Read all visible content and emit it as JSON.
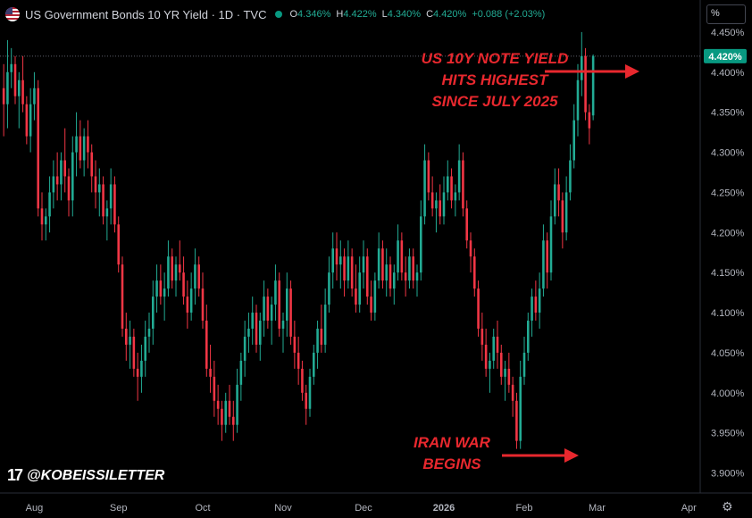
{
  "header": {
    "title": "US Government Bonds 10 YR Yield · 1D · TVC",
    "ohlc": [
      {
        "k": "O",
        "v": "4.346%"
      },
      {
        "k": "H",
        "v": "4.422%"
      },
      {
        "k": "L",
        "v": "4.340%"
      },
      {
        "k": "C",
        "v": "4.420%"
      },
      {
        "k": "",
        "v": "+0.088 (+2.03%)"
      }
    ]
  },
  "unit_label": "%",
  "watermark": "@KOBEISSILETTER",
  "annotations": {
    "top": [
      "US 10Y NOTE YIELD",
      "HITS HIGHEST",
      "SINCE JULY 2025"
    ],
    "bottom": [
      "IRAN WAR",
      "BEGINS"
    ]
  },
  "colors": {
    "up": "#22ab94",
    "down": "#f23645",
    "annotation": "#e8282e",
    "last_price": "#089981"
  },
  "icons": [
    "us-flag-icon",
    "market-status-dot-icon",
    "tradingview-logo-icon",
    "gear-icon"
  ],
  "chart_data": {
    "type": "candlestick",
    "y_axis": {
      "unit": "%",
      "ticks": [
        3.9,
        3.95,
        4.0,
        4.05,
        4.1,
        4.15,
        4.2,
        4.25,
        4.3,
        4.35,
        4.4,
        4.45
      ],
      "tick_labels": [
        "3.900%",
        "3.950%",
        "4.000%",
        "4.050%",
        "4.100%",
        "4.150%",
        "4.200%",
        "4.250%",
        "4.300%",
        "4.350%",
        "4.400%",
        "4.450%"
      ],
      "range": [
        3.875,
        4.49
      ],
      "side": "right",
      "grid": false
    },
    "x_axis": {
      "labels": [
        "Aug",
        "Sep",
        "Oct",
        "Nov",
        "Dec",
        "2026",
        "Feb",
        "Mar",
        "Apr"
      ],
      "label_bar_index": [
        8,
        30,
        52,
        73,
        94,
        115,
        136,
        155,
        179
      ],
      "range_bars": [
        0,
        182
      ]
    },
    "last_price": {
      "value": 4.42,
      "label": "4.420%"
    },
    "candles": [
      [
        4.38,
        4.41,
        4.32,
        4.36
      ],
      [
        4.36,
        4.44,
        4.33,
        4.4
      ],
      [
        4.4,
        4.43,
        4.38,
        4.41
      ],
      [
        4.41,
        4.42,
        4.36,
        4.37
      ],
      [
        4.37,
        4.4,
        4.33,
        4.39
      ],
      [
        4.39,
        4.42,
        4.35,
        4.36
      ],
      [
        4.36,
        4.37,
        4.31,
        4.32
      ],
      [
        4.32,
        4.38,
        4.3,
        4.36
      ],
      [
        4.36,
        4.4,
        4.34,
        4.38
      ],
      [
        4.38,
        4.39,
        4.22,
        4.23
      ],
      [
        4.23,
        4.25,
        4.19,
        4.21
      ],
      [
        4.21,
        4.23,
        4.19,
        4.22
      ],
      [
        4.22,
        4.27,
        4.2,
        4.25
      ],
      [
        4.25,
        4.29,
        4.23,
        4.27
      ],
      [
        4.27,
        4.3,
        4.24,
        4.26
      ],
      [
        4.26,
        4.3,
        4.24,
        4.29
      ],
      [
        4.29,
        4.33,
        4.25,
        4.27
      ],
      [
        4.27,
        4.28,
        4.22,
        4.24
      ],
      [
        4.24,
        4.32,
        4.22,
        4.3
      ],
      [
        4.3,
        4.35,
        4.27,
        4.32
      ],
      [
        4.32,
        4.34,
        4.28,
        4.29
      ],
      [
        4.29,
        4.33,
        4.27,
        4.32
      ],
      [
        4.32,
        4.34,
        4.28,
        4.3
      ],
      [
        4.3,
        4.31,
        4.25,
        4.27
      ],
      [
        4.27,
        4.29,
        4.23,
        4.25
      ],
      [
        4.25,
        4.28,
        4.22,
        4.26
      ],
      [
        4.26,
        4.27,
        4.21,
        4.22
      ],
      [
        4.22,
        4.24,
        4.19,
        4.23
      ],
      [
        4.23,
        4.28,
        4.21,
        4.26
      ],
      [
        4.26,
        4.27,
        4.2,
        4.21
      ],
      [
        4.21,
        4.22,
        4.15,
        4.16
      ],
      [
        4.16,
        4.17,
        4.07,
        4.08
      ],
      [
        4.08,
        4.1,
        4.04,
        4.06
      ],
      [
        4.06,
        4.09,
        4.03,
        4.07
      ],
      [
        4.07,
        4.08,
        4.02,
        4.03
      ],
      [
        4.03,
        4.05,
        3.99,
        4.02
      ],
      [
        4.02,
        4.06,
        4.0,
        4.04
      ],
      [
        4.04,
        4.09,
        4.02,
        4.07
      ],
      [
        4.07,
        4.1,
        4.05,
        4.08
      ],
      [
        4.08,
        4.14,
        4.06,
        4.12
      ],
      [
        4.12,
        4.16,
        4.1,
        4.14
      ],
      [
        4.14,
        4.16,
        4.11,
        4.12
      ],
      [
        4.12,
        4.15,
        4.09,
        4.13
      ],
      [
        4.13,
        4.19,
        4.12,
        4.17
      ],
      [
        4.17,
        4.18,
        4.13,
        4.14
      ],
      [
        4.14,
        4.17,
        4.12,
        4.16
      ],
      [
        4.16,
        4.19,
        4.14,
        4.15
      ],
      [
        4.15,
        4.17,
        4.11,
        4.12
      ],
      [
        4.12,
        4.14,
        4.08,
        4.1
      ],
      [
        4.1,
        4.15,
        4.09,
        4.13
      ],
      [
        4.13,
        4.18,
        4.11,
        4.16
      ],
      [
        4.16,
        4.17,
        4.12,
        4.13
      ],
      [
        4.13,
        4.15,
        4.08,
        4.09
      ],
      [
        4.09,
        4.11,
        4.02,
        4.03
      ],
      [
        4.03,
        4.06,
        4.0,
        4.02
      ],
      [
        4.02,
        4.04,
        3.97,
        3.99
      ],
      [
        3.99,
        4.01,
        3.96,
        3.98
      ],
      [
        3.98,
        3.99,
        3.94,
        3.96
      ],
      [
        3.96,
        4.0,
        3.95,
        3.99
      ],
      [
        3.99,
        4.01,
        3.96,
        3.97
      ],
      [
        3.97,
        3.99,
        3.94,
        3.96
      ],
      [
        3.96,
        4.03,
        3.95,
        4.01
      ],
      [
        4.01,
        4.05,
        3.99,
        4.04
      ],
      [
        4.04,
        4.09,
        4.02,
        4.07
      ],
      [
        4.07,
        4.1,
        4.05,
        4.08
      ],
      [
        4.08,
        4.12,
        4.06,
        4.1
      ],
      [
        4.1,
        4.11,
        4.05,
        4.06
      ],
      [
        4.06,
        4.1,
        4.04,
        4.09
      ],
      [
        4.09,
        4.14,
        4.07,
        4.12
      ],
      [
        4.12,
        4.13,
        4.08,
        4.09
      ],
      [
        4.09,
        4.12,
        4.06,
        4.11
      ],
      [
        4.11,
        4.16,
        4.09,
        4.14
      ],
      [
        4.14,
        4.15,
        4.07,
        4.08
      ],
      [
        4.08,
        4.1,
        4.05,
        4.09
      ],
      [
        4.09,
        4.15,
        4.07,
        4.13
      ],
      [
        4.13,
        4.14,
        4.06,
        4.07
      ],
      [
        4.07,
        4.09,
        4.03,
        4.05
      ],
      [
        4.05,
        4.07,
        4.01,
        4.03
      ],
      [
        4.03,
        4.04,
        3.99,
        4.0
      ],
      [
        4.0,
        4.01,
        3.96,
        3.98
      ],
      [
        3.98,
        4.03,
        3.97,
        4.02
      ],
      [
        4.02,
        4.06,
        4.01,
        4.05
      ],
      [
        4.05,
        4.09,
        4.03,
        4.08
      ],
      [
        4.08,
        4.11,
        4.05,
        4.06
      ],
      [
        4.06,
        4.13,
        4.05,
        4.11
      ],
      [
        4.11,
        4.17,
        4.1,
        4.15
      ],
      [
        4.15,
        4.2,
        4.13,
        4.18
      ],
      [
        4.18,
        4.2,
        4.14,
        4.16
      ],
      [
        4.16,
        4.19,
        4.13,
        4.17
      ],
      [
        4.17,
        4.18,
        4.12,
        4.14
      ],
      [
        4.14,
        4.19,
        4.13,
        4.17
      ],
      [
        4.17,
        4.18,
        4.12,
        4.13
      ],
      [
        4.13,
        4.16,
        4.1,
        4.11
      ],
      [
        4.11,
        4.17,
        4.1,
        4.15
      ],
      [
        4.15,
        4.19,
        4.13,
        4.17
      ],
      [
        4.17,
        4.18,
        4.11,
        4.12
      ],
      [
        4.12,
        4.14,
        4.09,
        4.1
      ],
      [
        4.1,
        4.15,
        4.09,
        4.14
      ],
      [
        4.14,
        4.2,
        4.13,
        4.18
      ],
      [
        4.18,
        4.19,
        4.13,
        4.14
      ],
      [
        4.14,
        4.18,
        4.12,
        4.16
      ],
      [
        4.16,
        4.17,
        4.12,
        4.13
      ],
      [
        4.13,
        4.16,
        4.11,
        4.15
      ],
      [
        4.15,
        4.21,
        4.14,
        4.19
      ],
      [
        4.19,
        4.2,
        4.14,
        4.15
      ],
      [
        4.15,
        4.17,
        4.12,
        4.14
      ],
      [
        4.14,
        4.18,
        4.13,
        4.17
      ],
      [
        4.17,
        4.18,
        4.13,
        4.14
      ],
      [
        4.14,
        4.16,
        4.12,
        4.15
      ],
      [
        4.15,
        4.24,
        4.14,
        4.22
      ],
      [
        4.22,
        4.31,
        4.21,
        4.29
      ],
      [
        4.29,
        4.3,
        4.24,
        4.25
      ],
      [
        4.25,
        4.27,
        4.22,
        4.23
      ],
      [
        4.23,
        4.25,
        4.2,
        4.24
      ],
      [
        4.24,
        4.26,
        4.21,
        4.22
      ],
      [
        4.22,
        4.27,
        4.21,
        4.25
      ],
      [
        4.25,
        4.29,
        4.24,
        4.27
      ],
      [
        4.27,
        4.28,
        4.23,
        4.24
      ],
      [
        4.24,
        4.26,
        4.22,
        4.25
      ],
      [
        4.25,
        4.31,
        4.24,
        4.29
      ],
      [
        4.29,
        4.3,
        4.22,
        4.23
      ],
      [
        4.23,
        4.24,
        4.18,
        4.19
      ],
      [
        4.19,
        4.2,
        4.15,
        4.17
      ],
      [
        4.17,
        4.18,
        4.12,
        4.13
      ],
      [
        4.13,
        4.14,
        4.07,
        4.08
      ],
      [
        4.08,
        4.1,
        4.04,
        4.06
      ],
      [
        4.06,
        4.08,
        4.02,
        4.03
      ],
      [
        4.03,
        4.05,
        4.0,
        4.04
      ],
      [
        4.04,
        4.08,
        4.03,
        4.07
      ],
      [
        4.07,
        4.09,
        4.03,
        4.05
      ],
      [
        4.05,
        4.06,
        4.01,
        4.02
      ],
      [
        4.02,
        4.04,
        3.99,
        4.03
      ],
      [
        4.03,
        4.05,
        4.0,
        4.01
      ],
      [
        4.01,
        4.02,
        3.97,
        3.99
      ],
      [
        3.99,
        4.0,
        3.93,
        3.94
      ],
      [
        3.94,
        4.04,
        3.93,
        4.02
      ],
      [
        4.02,
        4.07,
        4.01,
        4.05
      ],
      [
        4.05,
        4.1,
        4.04,
        4.09
      ],
      [
        4.09,
        4.13,
        4.07,
        4.12
      ],
      [
        4.12,
        4.14,
        4.09,
        4.1
      ],
      [
        4.1,
        4.15,
        4.08,
        4.13
      ],
      [
        4.13,
        4.21,
        4.12,
        4.19
      ],
      [
        4.19,
        4.2,
        4.13,
        4.15
      ],
      [
        4.15,
        4.24,
        4.14,
        4.22
      ],
      [
        4.22,
        4.28,
        4.21,
        4.26
      ],
      [
        4.26,
        4.28,
        4.22,
        4.24
      ],
      [
        4.24,
        4.25,
        4.18,
        4.2
      ],
      [
        4.2,
        4.27,
        4.19,
        4.25
      ],
      [
        4.25,
        4.31,
        4.24,
        4.29
      ],
      [
        4.29,
        4.36,
        4.28,
        4.34
      ],
      [
        4.34,
        4.41,
        4.32,
        4.39
      ],
      [
        4.39,
        4.45,
        4.37,
        4.42
      ],
      [
        4.42,
        4.43,
        4.34,
        4.35
      ],
      [
        4.35,
        4.36,
        4.31,
        4.33
      ],
      [
        4.346,
        4.422,
        4.34,
        4.42
      ]
    ]
  }
}
